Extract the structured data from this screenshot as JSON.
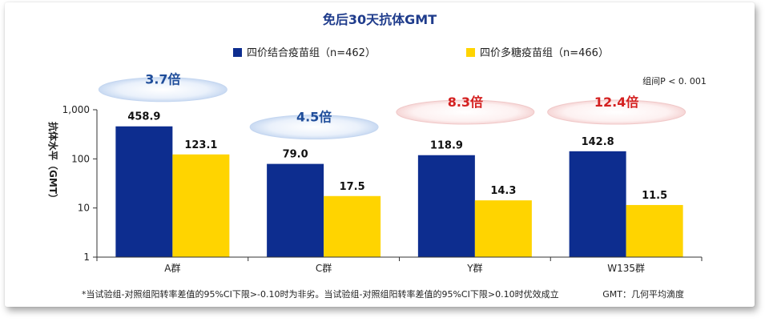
{
  "chart_data": {
    "type": "bar",
    "title": "免后30天抗体GMT",
    "ylabel": "抗体水平（GMT）",
    "xlabel": "",
    "y_scale": "log",
    "ylim": [
      1,
      1000
    ],
    "y_ticks": [
      1,
      10,
      100,
      1000
    ],
    "y_tick_labels": [
      "1",
      "10",
      "100",
      "1,000"
    ],
    "categories": [
      "A群",
      "C群",
      "Y群",
      "W135群"
    ],
    "series": [
      {
        "name": "四价结合疫苗组（n=462）",
        "values": [
          458.9,
          79.0,
          118.9,
          142.8
        ],
        "labels": [
          "458.9",
          "79.0",
          "118.9",
          "142.8"
        ],
        "color": "#0d2d8f"
      },
      {
        "name": "四价多糖疫苗组（n=466）",
        "values": [
          123.1,
          17.5,
          14.3,
          11.5
        ],
        "labels": [
          "123.1",
          "17.5",
          "14.3",
          "11.5"
        ],
        "color": "#ffd400"
      }
    ],
    "legend_position": "top",
    "grid": false,
    "annotations": {
      "fold_changes": [
        {
          "category": "A群",
          "text": "3.7倍",
          "style": "blue"
        },
        {
          "category": "C群",
          "text": "4.5倍",
          "style": "blue"
        },
        {
          "category": "Y群",
          "text": "8.3倍",
          "style": "red"
        },
        {
          "category": "W135群",
          "text": "12.4倍",
          "style": "red"
        }
      ],
      "p_value": "组间P < 0. 001"
    },
    "footnote": "*当试验组-对照组阳转率差值的95%CI下限>-0.10时为非劣。当试验组-对照组阳转率差值的95%CI下限>0.10时优效成立",
    "abbreviation": "GMT：几何平均滴度"
  },
  "colors": {
    "title": "#1f3c8c",
    "blue_label": "#1f4d9a",
    "red_label": "#d42020",
    "axis": "#333333"
  }
}
